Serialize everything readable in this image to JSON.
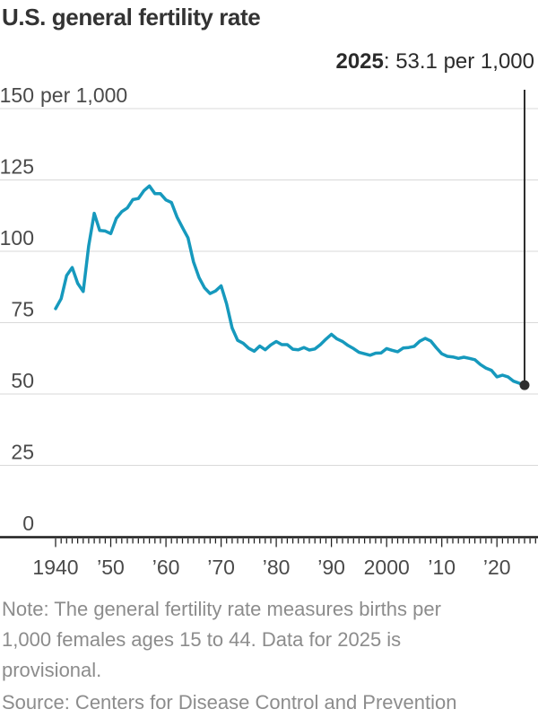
{
  "title": "U.S. general fertility rate",
  "annotation": {
    "year": "2025",
    "rest": ": 53.1 per 1,000"
  },
  "note": "Note: The general fertility rate measures births per 1,000 females ages 15 to 44. Data for 2025 is provisional.",
  "source": "Source: Centers for Disease Control and Prevention",
  "colors": {
    "line": "#1699bd",
    "dot": "#2e2e2e",
    "callout": "#2e2e2e",
    "grid": "#d9d9d9",
    "axis": "#1e1e1e",
    "tick_label": "#4a4a4a",
    "title_text": "#333333",
    "annotation_text": "#2b2b2b",
    "note_text": "#8c8c8c"
  },
  "chart_data": {
    "type": "line",
    "title": "U.S. general fertility rate",
    "ylabel": "per 1,000",
    "ylim": [
      0,
      150
    ],
    "grid": true,
    "yticks": [
      {
        "value": 0,
        "label": "0"
      },
      {
        "value": 25,
        "label": "25"
      },
      {
        "value": 50,
        "label": "50"
      },
      {
        "value": 75,
        "label": "75"
      },
      {
        "value": 100,
        "label": "100"
      },
      {
        "value": 125,
        "label": "125"
      },
      {
        "value": 150,
        "label": "150",
        "suffix": "per 1,000"
      }
    ],
    "xticks": [
      {
        "year": 1940,
        "label": "1940"
      },
      {
        "year": 1950,
        "label": "’50"
      },
      {
        "year": 1960,
        "label": "’60"
      },
      {
        "year": 1970,
        "label": "’70"
      },
      {
        "year": 1980,
        "label": "’80"
      },
      {
        "year": 1990,
        "label": "’90"
      },
      {
        "year": 2000,
        "label": "2000"
      },
      {
        "year": 2010,
        "label": "’10"
      },
      {
        "year": 2020,
        "label": "’20"
      }
    ],
    "minor_tick_year_range": [
      1940,
      2027
    ],
    "x": [
      1940,
      1941,
      1942,
      1943,
      1944,
      1945,
      1946,
      1947,
      1948,
      1949,
      1950,
      1951,
      1952,
      1953,
      1954,
      1955,
      1956,
      1957,
      1958,
      1959,
      1960,
      1961,
      1962,
      1963,
      1964,
      1965,
      1966,
      1967,
      1968,
      1969,
      1970,
      1971,
      1972,
      1973,
      1974,
      1975,
      1976,
      1977,
      1978,
      1979,
      1980,
      1981,
      1982,
      1983,
      1984,
      1985,
      1986,
      1987,
      1988,
      1989,
      1990,
      1991,
      1992,
      1993,
      1994,
      1995,
      1996,
      1997,
      1998,
      1999,
      2000,
      2001,
      2002,
      2003,
      2004,
      2005,
      2006,
      2007,
      2008,
      2009,
      2010,
      2011,
      2012,
      2013,
      2014,
      2015,
      2016,
      2017,
      2018,
      2019,
      2020,
      2021,
      2022,
      2023,
      2024,
      2025
    ],
    "series": [
      {
        "name": "General fertility rate (births per 1,000 females ages 15 to 44)",
        "values": [
          79.9,
          83.4,
          91.5,
          94.3,
          88.8,
          85.9,
          101.9,
          113.3,
          107.3,
          107.1,
          106.2,
          111.5,
          113.9,
          115.2,
          118.1,
          118.5,
          121.2,
          122.9,
          120.2,
          120.2,
          118.0,
          117.1,
          112.0,
          108.3,
          104.7,
          96.3,
          90.8,
          87.2,
          85.2,
          86.1,
          87.9,
          81.6,
          73.1,
          68.8,
          67.8,
          66.0,
          65.0,
          66.8,
          65.5,
          67.2,
          68.4,
          67.3,
          67.3,
          65.7,
          65.5,
          66.3,
          65.4,
          65.8,
          67.3,
          69.2,
          70.9,
          69.3,
          68.4,
          67.0,
          65.9,
          64.6,
          64.1,
          63.6,
          64.3,
          64.4,
          65.9,
          65.3,
          64.8,
          66.1,
          66.3,
          66.7,
          68.5,
          69.5,
          68.6,
          66.2,
          64.1,
          63.2,
          63.0,
          62.5,
          62.9,
          62.5,
          62.0,
          60.3,
          59.1,
          58.3,
          56.0,
          56.6,
          56.0,
          54.5,
          53.8,
          53.1
        ]
      }
    ],
    "end_point": {
      "year": 2025,
      "value": 53.1,
      "label": "2025: 53.1 per 1,000"
    }
  }
}
